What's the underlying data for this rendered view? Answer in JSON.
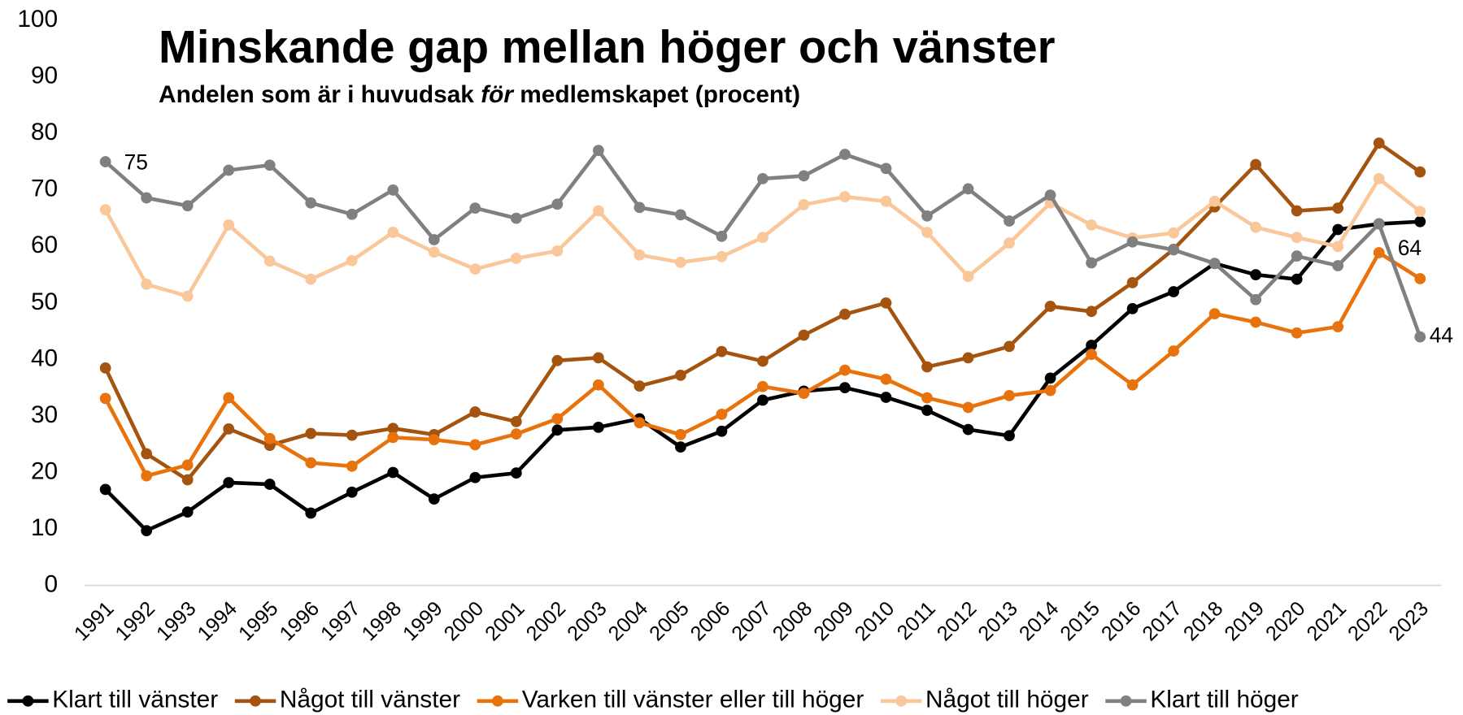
{
  "chart_data": {
    "type": "line",
    "title": "Minskande gap mellan höger och vänster",
    "subtitle": {
      "before": "Andelen som är i huvudsak ",
      "emphasis": "för",
      "after": " medlemskapet (procent)"
    },
    "categories": [
      "1991",
      "1992",
      "1993",
      "1994",
      "1995",
      "1996",
      "1997",
      "1998",
      "1999",
      "2000",
      "2001",
      "2002",
      "2003",
      "2004",
      "2005",
      "2006",
      "2007",
      "2008",
      "2009",
      "2010",
      "2011",
      "2012",
      "2013",
      "2014",
      "2015",
      "2016",
      "2017",
      "2018",
      "2019",
      "2020",
      "2021",
      "2022",
      "2023"
    ],
    "ylim": [
      0,
      100
    ],
    "yticks": [
      0,
      10,
      20,
      30,
      40,
      50,
      60,
      70,
      80,
      90,
      100
    ],
    "grid": false,
    "legend": "bottom",
    "series": [
      {
        "name": "Klart till vänster",
        "color": "#000000",
        "values": [
          17,
          9.7,
          13,
          18.2,
          17.9,
          12.8,
          16.5,
          20,
          15.3,
          19.1,
          19.9,
          27.5,
          28,
          29.5,
          24.5,
          27.3,
          32.8,
          34.4,
          35,
          33.3,
          31,
          27.6,
          26.5,
          36.7,
          42.5,
          49,
          52,
          57,
          55,
          54.2,
          63,
          64,
          64.4
        ],
        "value_labels": [
          null,
          null,
          null,
          null,
          null,
          null,
          null,
          null,
          null,
          null,
          null,
          null,
          null,
          null,
          null,
          null,
          null,
          null,
          null,
          null,
          null,
          null,
          null,
          null,
          null,
          null,
          null,
          null,
          null,
          null,
          null,
          null,
          "64"
        ]
      },
      {
        "name": "Något till vänster",
        "color": "#a5540f",
        "values": [
          38.5,
          23.3,
          18.7,
          27.7,
          24.8,
          26.9,
          26.6,
          27.8,
          26.7,
          30.7,
          29,
          39.8,
          40.3,
          35.3,
          37.2,
          41.4,
          39.7,
          44.3,
          48,
          50,
          38.7,
          40.3,
          42.3,
          49.4,
          48.5,
          53.6,
          59.5,
          67,
          74.5,
          66.3,
          66.8,
          78.3,
          73.2
        ]
      },
      {
        "name": "Varken till vänster eller till höger",
        "color": "#e8720c",
        "values": [
          33.1,
          19.4,
          21.3,
          33.2,
          26,
          21.7,
          21.1,
          26.2,
          25.8,
          24.9,
          26.8,
          29.5,
          35.5,
          28.8,
          26.7,
          30.3,
          35.2,
          34,
          38.1,
          36.5,
          33.2,
          31.5,
          33.6,
          34.5,
          40.9,
          35.5,
          41.5,
          48.1,
          46.6,
          44.7,
          45.8,
          58.9,
          54.3
        ]
      },
      {
        "name": "Något till höger",
        "color": "#f9c79a",
        "values": [
          66.5,
          53.3,
          51.2,
          63.8,
          57.4,
          54.2,
          57.5,
          62.5,
          59,
          56,
          57.9,
          59.2,
          66.3,
          58.5,
          57.2,
          58.2,
          61.6,
          67.4,
          68.8,
          68,
          62.5,
          54.7,
          60.6,
          67.7,
          63.8,
          61.5,
          62.4,
          68,
          63.4,
          61.6,
          60,
          72,
          66.2
        ]
      },
      {
        "name": "Klart till höger",
        "color": "#808080",
        "values": [
          75,
          68.6,
          67.2,
          73.5,
          74.4,
          67.7,
          65.7,
          70,
          61.2,
          66.8,
          65,
          67.5,
          77,
          66.9,
          65.6,
          61.8,
          72,
          72.5,
          76.3,
          73.8,
          65.4,
          70.2,
          64.5,
          69.1,
          57.1,
          60.8,
          59.4,
          57,
          50.6,
          58.3,
          56.6,
          64,
          44
        ],
        "value_labels": [
          "75",
          null,
          null,
          null,
          null,
          null,
          null,
          null,
          null,
          null,
          null,
          null,
          null,
          null,
          null,
          null,
          null,
          null,
          null,
          null,
          null,
          null,
          null,
          null,
          null,
          null,
          null,
          null,
          null,
          null,
          null,
          null,
          "44"
        ]
      }
    ]
  }
}
